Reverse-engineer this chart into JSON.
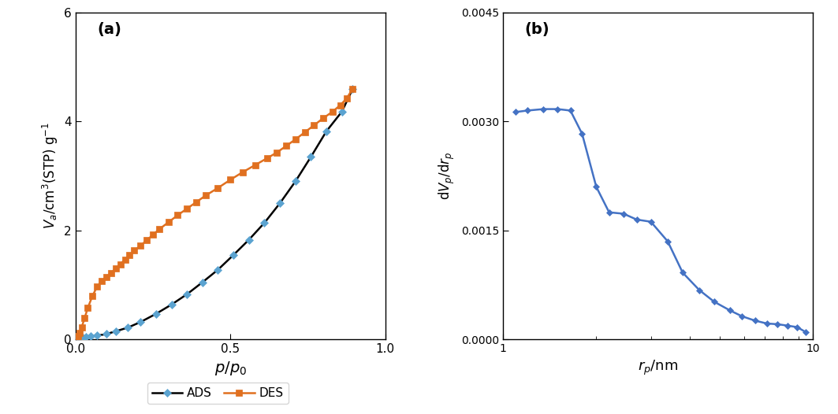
{
  "ads_x": [
    0.004,
    0.008,
    0.013,
    0.018,
    0.025,
    0.035,
    0.05,
    0.07,
    0.1,
    0.13,
    0.17,
    0.21,
    0.26,
    0.31,
    0.36,
    0.41,
    0.46,
    0.51,
    0.56,
    0.61,
    0.66,
    0.71,
    0.76,
    0.81,
    0.86,
    0.895
  ],
  "ads_y": [
    0.03,
    0.03,
    0.03,
    0.03,
    0.04,
    0.05,
    0.06,
    0.07,
    0.1,
    0.15,
    0.22,
    0.32,
    0.47,
    0.64,
    0.83,
    1.05,
    1.28,
    1.55,
    1.83,
    2.14,
    2.5,
    2.9,
    3.35,
    3.82,
    4.18,
    4.6
  ],
  "des_x": [
    0.004,
    0.008,
    0.013,
    0.02,
    0.03,
    0.04,
    0.055,
    0.07,
    0.085,
    0.1,
    0.115,
    0.13,
    0.145,
    0.16,
    0.175,
    0.19,
    0.21,
    0.23,
    0.25,
    0.27,
    0.3,
    0.33,
    0.36,
    0.39,
    0.42,
    0.46,
    0.5,
    0.54,
    0.58,
    0.62,
    0.65,
    0.68,
    0.71,
    0.74,
    0.77,
    0.8,
    0.83,
    0.855,
    0.875,
    0.895
  ],
  "des_y": [
    0.03,
    0.06,
    0.12,
    0.22,
    0.4,
    0.58,
    0.8,
    0.97,
    1.07,
    1.15,
    1.22,
    1.3,
    1.38,
    1.47,
    1.55,
    1.63,
    1.72,
    1.82,
    1.92,
    2.02,
    2.15,
    2.28,
    2.4,
    2.52,
    2.64,
    2.78,
    2.93,
    3.07,
    3.2,
    3.33,
    3.43,
    3.55,
    3.67,
    3.8,
    3.93,
    4.06,
    4.18,
    4.3,
    4.42,
    4.6
  ],
  "bjh_x": [
    1.1,
    1.2,
    1.35,
    1.5,
    1.65,
    1.8,
    2.0,
    2.2,
    2.45,
    2.7,
    3.0,
    3.4,
    3.8,
    4.3,
    4.8,
    5.4,
    5.9,
    6.5,
    7.1,
    7.7,
    8.3,
    8.9,
    9.5
  ],
  "bjh_y": [
    0.00313,
    0.00315,
    0.00317,
    0.00317,
    0.00315,
    0.00283,
    0.0021,
    0.00175,
    0.00173,
    0.00165,
    0.00162,
    0.00135,
    0.00092,
    0.00068,
    0.00052,
    0.0004,
    0.00032,
    0.00026,
    0.00022,
    0.00021,
    0.00019,
    0.00017,
    0.0001
  ],
  "ads_color": "#000000",
  "des_color": "#e07020",
  "bjh_color": "#4472c4",
  "ads_marker": "D",
  "des_marker": "s",
  "bjh_marker": "D",
  "label_a": "(a)",
  "label_b": "(b)",
  "ylim_a": [
    0,
    6
  ],
  "xlim_a": [
    0,
    1
  ],
  "ylim_b": [
    0,
    0.0045
  ],
  "xlim_b": [
    1,
    10
  ],
  "yticks_a": [
    0,
    2,
    4,
    6
  ],
  "xticks_a": [
    0,
    0.5,
    1
  ],
  "yticks_b": [
    0,
    0.0015,
    0.003,
    0.0045
  ]
}
